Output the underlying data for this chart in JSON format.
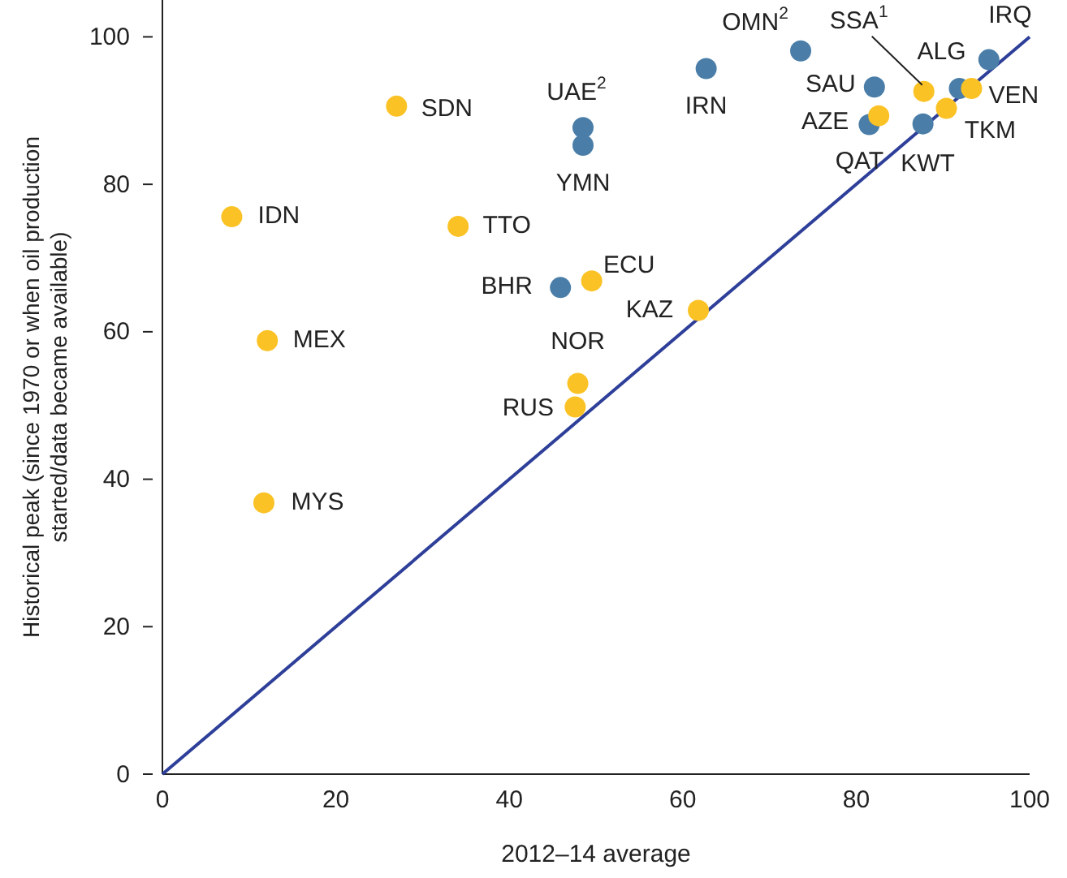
{
  "chart_data": {
    "type": "scatter",
    "xlabel": "2012–14 average",
    "ylabel": "Historical peak (since 1970 or when oil production\nstarted/data became available)",
    "xlim": [
      0,
      100
    ],
    "xticks": [
      0,
      20,
      40,
      60,
      80,
      100
    ],
    "ylim": [
      0,
      105
    ],
    "yticks": [
      0,
      20,
      40,
      60,
      80,
      100
    ],
    "grid": false,
    "marker": "circle",
    "series": [
      {
        "type": "line",
        "color": "#2e3f99",
        "x": [
          0,
          100
        ],
        "values": [
          0,
          100
        ],
        "marker": "none",
        "line_style": "solid"
      },
      {
        "color": "#4a7ea8",
        "x": [
          45.9,
          48.5,
          48.5,
          62.7,
          73.6,
          82.1,
          81.5,
          87.7,
          91.9,
          95.3
        ],
        "values": [
          66.0,
          87.7,
          85.3,
          95.7,
          98.1,
          93.2,
          88.1,
          88.2,
          93.0,
          96.9
        ]
      },
      {
        "color": "#fbc225",
        "x": [
          27.0,
          8.0,
          34.1,
          49.5,
          12.1,
          47.9,
          47.6,
          11.7,
          61.8,
          82.6,
          87.8,
          90.4,
          93.3
        ],
        "values": [
          90.6,
          75.6,
          74.3,
          66.9,
          58.8,
          53.0,
          49.8,
          36.8,
          62.9,
          89.3,
          92.6,
          90.3,
          93.0
        ]
      }
    ],
    "annotations": [
      {
        "text": "SDN",
        "x": 27.0,
        "y": 90.6
      },
      {
        "text": "IDN",
        "x": 8.0,
        "y": 75.6
      },
      {
        "text": "TTO",
        "x": 34.1,
        "y": 74.3
      },
      {
        "text": "ECU",
        "x": 49.5,
        "y": 66.9
      },
      {
        "text": "BHR",
        "x": 45.9,
        "y": 66.0
      },
      {
        "text": "KAZ",
        "x": 61.8,
        "y": 62.9
      },
      {
        "text": "NOR",
        "x": 47.9,
        "y": 53.0
      },
      {
        "text": "RUS",
        "x": 47.6,
        "y": 49.8
      },
      {
        "text": "MEX",
        "x": 12.1,
        "y": 58.8
      },
      {
        "text": "MYS",
        "x": 11.7,
        "y": 36.8
      },
      {
        "text": "UAE$^{2}$",
        "x": 48.5,
        "y": 87.7
      },
      {
        "text": "YMN",
        "x": 48.5,
        "y": 85.3
      },
      {
        "text": "IRN",
        "x": 62.7,
        "y": 95.7
      },
      {
        "text": "OMN$^{2}$",
        "x": 73.6,
        "y": 98.1
      },
      {
        "text": "SSA$^{1}$",
        "x": 87.8,
        "y": 92.6
      },
      {
        "text": "IRQ",
        "x": 95.3,
        "y": 96.9
      },
      {
        "text": "SAU",
        "x": 82.1,
        "y": 93.2
      },
      {
        "text": "AZE",
        "x": 82.6,
        "y": 89.3
      },
      {
        "text": "QAT",
        "x": 81.5,
        "y": 88.1
      },
      {
        "text": "ALG",
        "x": 91.9,
        "y": 93.0
      },
      {
        "text": "KWT",
        "x": 87.7,
        "y": 88.2
      },
      {
        "text": "TKM",
        "x": 90.4,
        "y": 90.3
      },
      {
        "text": "VEN",
        "x": 93.3,
        "y": 93.0
      }
    ]
  }
}
